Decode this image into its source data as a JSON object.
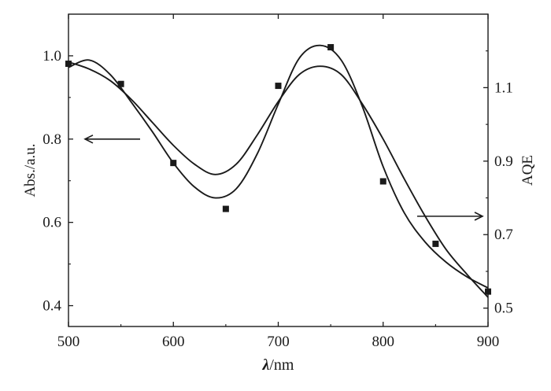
{
  "chart_data": {
    "type": "line",
    "xlabel_symbol": "λ",
    "xlabel_unit": "/nm",
    "ylabel_left": "Abs./a.u.",
    "ylabel_right": "AQE",
    "xlim": [
      500,
      900
    ],
    "ylim_left": [
      0.35,
      1.1
    ],
    "ylim_right": [
      0.45,
      1.3
    ],
    "x_ticks": [
      500,
      600,
      700,
      800,
      900
    ],
    "x_tick_labels": [
      "500",
      "600",
      "700",
      "800",
      "900"
    ],
    "left_ticks": [
      0.4,
      0.6,
      0.8,
      1.0
    ],
    "left_tick_labels": [
      "0.4",
      "0.6",
      "0.8",
      "1.0"
    ],
    "right_ticks": [
      0.5,
      0.7,
      0.9,
      1.1
    ],
    "right_tick_labels": [
      "0.5",
      "0.7",
      "0.9",
      "1.1"
    ],
    "grid": false,
    "legend": "none",
    "series": [
      {
        "axis": "left",
        "style": "line",
        "x": [
          500,
          520,
          540,
          560,
          580,
          600,
          620,
          640,
          660,
          680,
          700,
          720,
          740,
          760,
          780,
          800,
          820,
          840,
          860,
          880,
          900
        ],
        "values": [
          0.985,
          0.968,
          0.94,
          0.895,
          0.84,
          0.785,
          0.74,
          0.715,
          0.74,
          0.81,
          0.89,
          0.955,
          0.975,
          0.955,
          0.885,
          0.8,
          0.705,
          0.615,
          0.535,
          0.475,
          0.42
        ]
      },
      {
        "axis": "right",
        "style": "line",
        "x": [
          500,
          520,
          540,
          560,
          580,
          600,
          620,
          640,
          660,
          680,
          700,
          720,
          740,
          760,
          780,
          800,
          820,
          840,
          860,
          880,
          900
        ],
        "values": [
          1.155,
          1.175,
          1.135,
          1.06,
          0.98,
          0.895,
          0.83,
          0.8,
          0.825,
          0.92,
          1.055,
          1.18,
          1.215,
          1.175,
          1.05,
          0.885,
          0.76,
          0.68,
          0.625,
          0.585,
          0.555
        ]
      },
      {
        "axis": "right",
        "style": "scatter",
        "x": [
          500,
          550,
          600,
          650,
          700,
          750,
          800,
          850,
          900
        ],
        "values": [
          1.165,
          1.11,
          0.895,
          0.77,
          1.105,
          1.21,
          0.845,
          0.675,
          0.545
        ]
      }
    ],
    "annotations": [
      {
        "type": "arrow",
        "direction": "left",
        "points_to_axis": "left"
      },
      {
        "type": "arrow",
        "direction": "right",
        "points_to_axis": "right"
      }
    ]
  }
}
